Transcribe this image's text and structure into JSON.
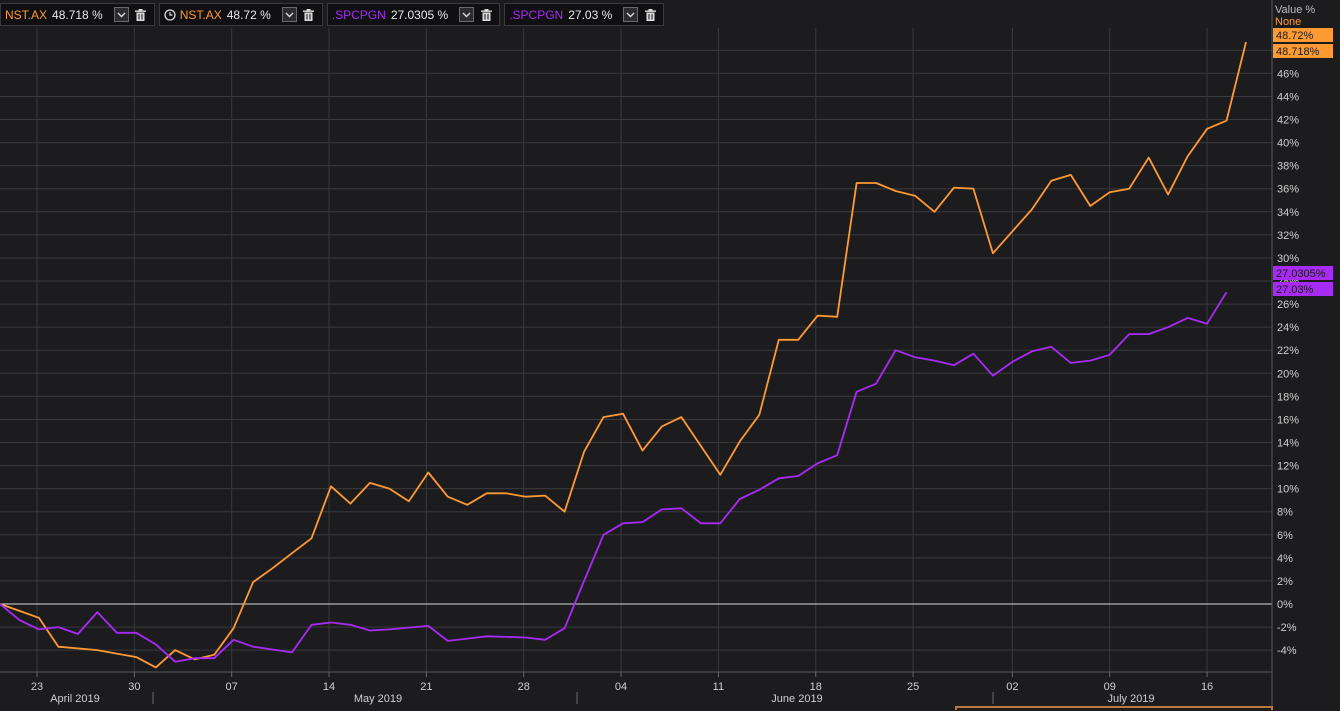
{
  "legend": [
    {
      "label": "NST.AX",
      "value": "48.718 %",
      "color": "#ff9a33",
      "has_clock": false
    },
    {
      "label": "NST.AX",
      "value": "48.72 %",
      "color": "#ff9a33",
      "has_clock": true
    },
    {
      "label": ".SPCPGN",
      "value": "27.0305 %",
      "color": "#a82bf5",
      "has_clock": false
    },
    {
      "label": ".SPCPGN",
      "value": "27.03 %",
      "color": "#a82bf5",
      "has_clock": false
    }
  ],
  "axis_header": {
    "title": "Value %",
    "scale": "None"
  },
  "value_tags": {
    "nst_last": "48.72%",
    "nst_last_alt": "48.718%",
    "spc_last": "27.0305%",
    "spc_last_alt": "27.03%"
  },
  "colors": {
    "nst": "#ff9a33",
    "spc": "#a82bf5",
    "background": "#1c1c1e",
    "grid": "#3a3a3e"
  },
  "chart_data": {
    "type": "line",
    "x_ticks": [
      "23",
      "30",
      "07",
      "14",
      "21",
      "28",
      "04",
      "11",
      "18",
      "25",
      "02",
      "09",
      "16"
    ],
    "month_labels": [
      "April 2019",
      "May 2019",
      "June 2019",
      "July 2019"
    ],
    "y_ticks": [
      "48%",
      "46%",
      "44%",
      "42%",
      "40%",
      "38%",
      "36%",
      "34%",
      "32%",
      "30%",
      "28%",
      "26%",
      "24%",
      "22%",
      "20%",
      "18%",
      "16%",
      "14%",
      "12%",
      "10%",
      "8%",
      "6%",
      "4%",
      "2%",
      "0%",
      "-2%",
      "-4%"
    ],
    "y_values": [
      48,
      46,
      44,
      42,
      40,
      38,
      36,
      34,
      32,
      30,
      28,
      26,
      24,
      22,
      20,
      18,
      16,
      14,
      12,
      10,
      8,
      6,
      4,
      2,
      0,
      -2,
      -4
    ],
    "ylim": [
      -5,
      52
    ],
    "x_index_range": [
      0,
      64
    ],
    "series": [
      {
        "name": "NST.AX",
        "color": "#ff9a33",
        "points": [
          [
            0,
            0
          ],
          [
            1,
            -0.6
          ],
          [
            2,
            -1.2
          ],
          [
            3,
            -3.7
          ],
          [
            5,
            -4.0
          ],
          [
            6,
            -4.3
          ],
          [
            7,
            -4.6
          ],
          [
            8,
            -5.5
          ],
          [
            9,
            -4.0
          ],
          [
            10,
            -4.8
          ],
          [
            11,
            -4.4
          ],
          [
            12,
            -2.1
          ],
          [
            13,
            1.9
          ],
          [
            14,
            3.1
          ],
          [
            15,
            4.4
          ],
          [
            16,
            5.7
          ],
          [
            17,
            10.2
          ],
          [
            18,
            8.7
          ],
          [
            19,
            10.5
          ],
          [
            20,
            10.0
          ],
          [
            21,
            8.9
          ],
          [
            22,
            11.4
          ],
          [
            23,
            9.3
          ],
          [
            24,
            8.6
          ],
          [
            25,
            9.6
          ],
          [
            26,
            9.6
          ],
          [
            27,
            9.3
          ],
          [
            28,
            9.4
          ],
          [
            29,
            8.0
          ],
          [
            30,
            13.2
          ],
          [
            31,
            16.2
          ],
          [
            32,
            16.5
          ],
          [
            33,
            13.3
          ],
          [
            34,
            15.4
          ],
          [
            35,
            16.2
          ],
          [
            37,
            11.2
          ],
          [
            38,
            14.1
          ],
          [
            39,
            16.4
          ],
          [
            40,
            22.9
          ],
          [
            41,
            22.9
          ],
          [
            42,
            25.0
          ],
          [
            43,
            24.9
          ],
          [
            44,
            36.5
          ],
          [
            45,
            36.5
          ],
          [
            46,
            35.8
          ],
          [
            47,
            35.4
          ],
          [
            48,
            34.0
          ],
          [
            49,
            36.1
          ],
          [
            50,
            36.0
          ],
          [
            51,
            30.4
          ],
          [
            53,
            34.2
          ],
          [
            54,
            36.7
          ],
          [
            55,
            37.2
          ],
          [
            56,
            34.5
          ],
          [
            57,
            35.7
          ],
          [
            58,
            36.0
          ],
          [
            59,
            38.7
          ],
          [
            60,
            35.5
          ],
          [
            61,
            38.8
          ],
          [
            62,
            41.2
          ],
          [
            63,
            41.9
          ],
          [
            64,
            48.72
          ]
        ]
      },
      {
        "name": ".SPCPGN",
        "color": "#a82bf5",
        "points": [
          [
            0,
            0
          ],
          [
            1,
            -1.4
          ],
          [
            2,
            -2.2
          ],
          [
            3,
            -2.0
          ],
          [
            4,
            -2.6
          ],
          [
            5,
            -0.7
          ],
          [
            6,
            -2.5
          ],
          [
            7,
            -2.5
          ],
          [
            8,
            -3.5
          ],
          [
            9,
            -5.0
          ],
          [
            10,
            -4.7
          ],
          [
            11,
            -4.7
          ],
          [
            12,
            -3.1
          ],
          [
            13,
            -3.7
          ],
          [
            15,
            -4.2
          ],
          [
            16,
            -1.8
          ],
          [
            17,
            -1.6
          ],
          [
            18,
            -1.8
          ],
          [
            19,
            -2.3
          ],
          [
            20,
            -2.2
          ],
          [
            22,
            -1.9
          ],
          [
            23,
            -3.2
          ],
          [
            24,
            -3.0
          ],
          [
            25,
            -2.8
          ],
          [
            27,
            -2.9
          ],
          [
            28,
            -3.1
          ],
          [
            29,
            -2.1
          ],
          [
            30,
            2.0
          ],
          [
            31,
            6.0
          ],
          [
            32,
            7.0
          ],
          [
            33,
            7.1
          ],
          [
            34,
            8.2
          ],
          [
            35,
            8.3
          ],
          [
            36,
            7.0
          ],
          [
            37,
            7.0
          ],
          [
            38,
            9.1
          ],
          [
            39,
            9.9
          ],
          [
            40,
            10.9
          ],
          [
            41,
            11.1
          ],
          [
            42,
            12.2
          ],
          [
            43,
            12.9
          ],
          [
            44,
            18.4
          ],
          [
            45,
            19.1
          ],
          [
            46,
            22.0
          ],
          [
            47,
            21.4
          ],
          [
            48,
            21.1
          ],
          [
            49,
            20.7
          ],
          [
            50,
            21.7
          ],
          [
            51,
            19.8
          ],
          [
            52,
            21.0
          ],
          [
            53,
            21.9
          ],
          [
            54,
            22.3
          ],
          [
            55,
            20.9
          ],
          [
            56,
            21.1
          ],
          [
            57,
            21.6
          ],
          [
            58,
            23.4
          ],
          [
            59,
            23.4
          ],
          [
            60,
            24.0
          ],
          [
            61,
            24.8
          ],
          [
            62,
            24.3
          ],
          [
            63,
            27.03
          ]
        ]
      }
    ]
  }
}
